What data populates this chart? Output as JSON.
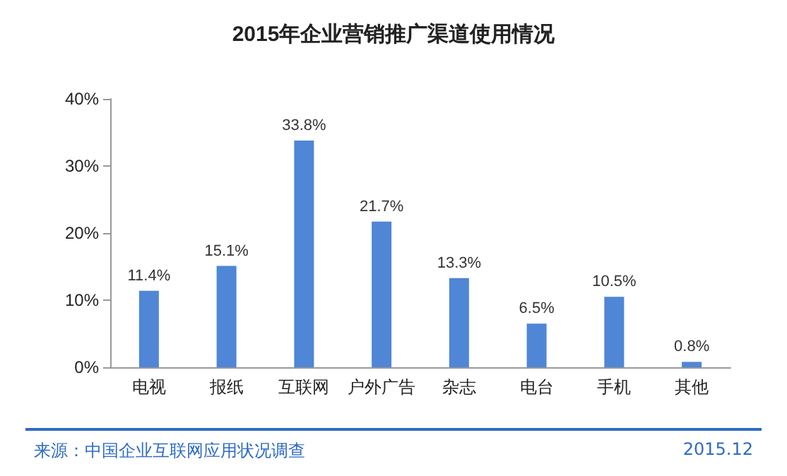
{
  "chart_data": {
    "type": "bar",
    "title": "2015年企业营销推广渠道使用情况",
    "categories": [
      "电视",
      "报纸",
      "互联网",
      "户外广告",
      "杂志",
      "电台",
      "手机",
      "其他"
    ],
    "values": [
      11.4,
      15.1,
      33.8,
      21.7,
      13.3,
      6.5,
      10.5,
      0.8
    ],
    "value_labels": [
      "11.4%",
      "15.1%",
      "33.8%",
      "21.7%",
      "13.3%",
      "6.5%",
      "10.5%",
      "0.8%"
    ],
    "color": "#4f86d6",
    "ylim": [
      0,
      40
    ],
    "yticks": [
      {
        "value": 0,
        "label": "0%"
      },
      {
        "value": 10,
        "label": "10%"
      },
      {
        "value": 20,
        "label": "20%"
      },
      {
        "value": 30,
        "label": "30%"
      },
      {
        "value": 40,
        "label": "40%"
      }
    ],
    "grid": false,
    "annotations": [
      "来源：中国企业互联网应用状况调查",
      "2015.12"
    ]
  }
}
